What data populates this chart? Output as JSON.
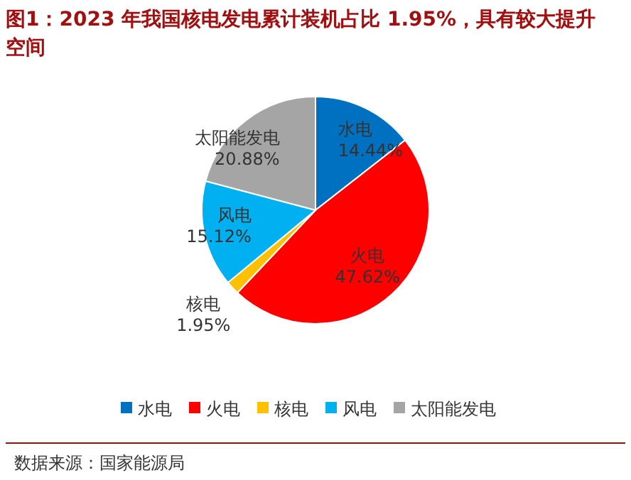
{
  "chart_data": {
    "type": "pie",
    "title": "图1：2023 年我国核电发电累计装机占比 1.95%，具有较大提升空间",
    "categories": [
      "水电",
      "火电",
      "核电",
      "风电",
      "太阳能发电"
    ],
    "values": [
      14.44,
      47.62,
      1.95,
      15.12,
      20.88
    ],
    "value_labels": [
      "14.44%",
      "47.62%",
      "1.95%",
      "15.12%",
      "20.88%"
    ],
    "colors": [
      "#0070c0",
      "#ff0000",
      "#ffc000",
      "#00b0f0",
      "#a5a5a5"
    ],
    "legend": "bottom",
    "annotations": [
      "数据来源：国家能源局"
    ]
  }
}
